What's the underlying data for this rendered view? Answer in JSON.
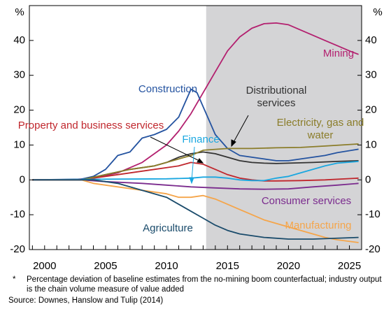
{
  "chart_data": {
    "type": "line",
    "y_unit": "%",
    "forecast_start": 2013.25,
    "shade_color": "#d4d4d6",
    "xlim": [
      1998.75,
      2026
    ],
    "ylim": [
      -20,
      50
    ],
    "xticks": [
      2000,
      2005,
      2010,
      2015,
      2020,
      2025
    ],
    "xminorticks": [
      1999,
      2000,
      2001,
      2002,
      2003,
      2004,
      2005,
      2006,
      2007,
      2008,
      2009,
      2010,
      2011,
      2012,
      2013,
      2014,
      2015,
      2016,
      2017,
      2018,
      2019,
      2020,
      2021,
      2022,
      2023,
      2024,
      2025
    ],
    "yticks": [
      -20,
      -10,
      0,
      10,
      20,
      30,
      40
    ],
    "series": [
      {
        "name": "Mining",
        "color": "#b3206f",
        "x": [
          1999,
          2002,
          2004,
          2006,
          2008,
          2010,
          2011,
          2012,
          2013,
          2014,
          2015,
          2016,
          2017,
          2018,
          2019,
          2020,
          2021,
          2022,
          2023,
          2024,
          2025,
          2025.75
        ],
        "values": [
          0,
          0,
          0.5,
          2,
          5,
          10,
          14,
          19,
          25,
          31,
          37,
          41,
          43.5,
          44.8,
          45,
          44.5,
          43,
          41.5,
          40,
          38.5,
          37,
          36
        ]
      },
      {
        "name": "Construction",
        "color": "#2453a0",
        "x": [
          1999,
          2003,
          2004,
          2005,
          2005.5,
          2006,
          2007,
          2008,
          2009,
          2010,
          2011,
          2011.5,
          2012,
          2012.5,
          2013,
          2013.5,
          2014,
          2015,
          2016,
          2017,
          2018,
          2019,
          2020,
          2021,
          2022,
          2023,
          2024,
          2025.75
        ],
        "values": [
          0,
          0.2,
          1,
          3,
          5,
          7,
          8,
          12,
          13,
          14.5,
          18,
          22,
          26,
          25,
          21,
          17,
          13,
          9,
          7,
          6.5,
          6,
          5.5,
          5.5,
          6,
          6.5,
          7,
          7.8,
          8.8
        ]
      },
      {
        "name": "Distributional services",
        "color": "#333333",
        "x": [
          1999,
          2003,
          2005,
          2007,
          2009,
          2010,
          2011,
          2012,
          2013,
          2014,
          2015,
          2016,
          2017,
          2018,
          2019,
          2020,
          2022,
          2024,
          2025.75
        ],
        "values": [
          0,
          0,
          1.5,
          3,
          4,
          5,
          6.5,
          7.5,
          8,
          7.5,
          6.5,
          5.5,
          5,
          4.8,
          4.7,
          4.8,
          5,
          5.3,
          5.5
        ]
      },
      {
        "name": "Property and business services",
        "color": "#c0272d",
        "x": [
          1999,
          2003,
          2005,
          2007,
          2009,
          2011,
          2012,
          2013,
          2014,
          2015,
          2016,
          2017,
          2018,
          2019,
          2021,
          2023,
          2025.75
        ],
        "values": [
          0,
          0,
          1,
          2,
          3,
          4,
          5,
          4.5,
          3,
          1.5,
          0.5,
          0,
          -0.3,
          -0.3,
          -0.2,
          0,
          0.5
        ]
      },
      {
        "name": "Electricity, gas and water",
        "color": "#8b7d2a",
        "x": [
          1999,
          2003,
          2005,
          2007,
          2009,
          2011,
          2012,
          2013,
          2015,
          2017,
          2019,
          2021,
          2023,
          2025.75
        ],
        "values": [
          0,
          0,
          1.5,
          3,
          4,
          6,
          7,
          8.5,
          9,
          9,
          9.2,
          9.3,
          9.7,
          10.3
        ]
      },
      {
        "name": "Finance",
        "color": "#1aa7e0",
        "x": [
          1999,
          2005,
          2010,
          2012,
          2013,
          2014,
          2015,
          2016,
          2017,
          2018,
          2019,
          2020,
          2021,
          2022,
          2023,
          2024,
          2025.75
        ],
        "values": [
          0,
          0.2,
          0.3,
          0.5,
          0.8,
          0.8,
          0.5,
          0,
          -0.2,
          -0.2,
          0.5,
          1,
          2,
          3,
          4,
          4.8,
          5.3
        ]
      },
      {
        "name": "Consumer services",
        "color": "#7b2c8e",
        "x": [
          1999,
          2003,
          2005,
          2008,
          2010,
          2012,
          2014,
          2016,
          2018,
          2020,
          2022,
          2024,
          2025.75
        ],
        "values": [
          0,
          0,
          -0.5,
          -1,
          -1.5,
          -2,
          -2.3,
          -2.6,
          -2.7,
          -2.6,
          -2,
          -1.5,
          -1
        ]
      },
      {
        "name": "Manufacturing",
        "color": "#f5a54a",
        "x": [
          1999,
          2003,
          2004,
          2006,
          2008,
          2010,
          2011,
          2012,
          2013,
          2014,
          2015,
          2016,
          2017,
          2018,
          2019,
          2020,
          2021,
          2022,
          2023,
          2024,
          2025.75
        ],
        "values": [
          0,
          0,
          -1,
          -2,
          -3,
          -4,
          -5,
          -5,
          -4.5,
          -5.5,
          -7,
          -8.5,
          -10,
          -11.5,
          -12.5,
          -13.5,
          -14.5,
          -15.5,
          -16.5,
          -17.2,
          -18
        ]
      },
      {
        "name": "Agriculture",
        "color": "#1a4b6b",
        "x": [
          1999,
          2004,
          2006,
          2008,
          2010,
          2011,
          2012,
          2013,
          2014,
          2015,
          2016,
          2017,
          2018,
          2020,
          2022,
          2025.75
        ],
        "values": [
          0,
          0,
          -1,
          -3,
          -5,
          -7,
          -9,
          -11,
          -13,
          -14.5,
          -15.5,
          -16,
          -16.5,
          -17,
          -17,
          -16.5
        ]
      }
    ],
    "footnote": "Percentage deviation of baseline estimates from the no-mining boom counterfactual; industry output is the chain volume measure of value added",
    "footnote_mark": "*",
    "source": "Source: Downes, Hanslow and Tulip (2014)"
  }
}
